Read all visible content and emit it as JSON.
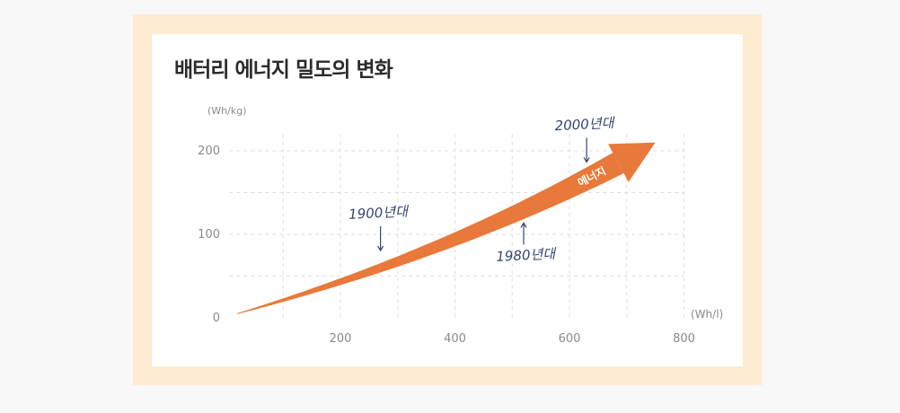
{
  "chart_data": {
    "type": "area",
    "title": "배터리 에너지 밀도의 변화",
    "x_unit": "(Wh/l)",
    "y_unit": "(Wh/kg)",
    "x_ticks": [
      200,
      400,
      600,
      800
    ],
    "y_ticks": [
      0,
      100,
      200
    ],
    "xlim": [
      20,
      800
    ],
    "ylim": [
      0,
      220
    ],
    "grid": true,
    "series": [
      {
        "name": "에너지",
        "x": [
          20,
          200,
          400,
          600,
          750
        ],
        "y": [
          5,
          50,
          112,
          185,
          210
        ]
      }
    ],
    "annotations": [
      {
        "text": "1900년대",
        "x": 270,
        "y": 72
      },
      {
        "text": "1980년대",
        "x": 520,
        "y": 120
      },
      {
        "text": "2000년대",
        "x": 630,
        "y": 178
      }
    ],
    "colors": {
      "frame": "#fdebd2",
      "arrow": "#e8793a",
      "annotation": "#33466e",
      "grid": "#dedede"
    }
  }
}
